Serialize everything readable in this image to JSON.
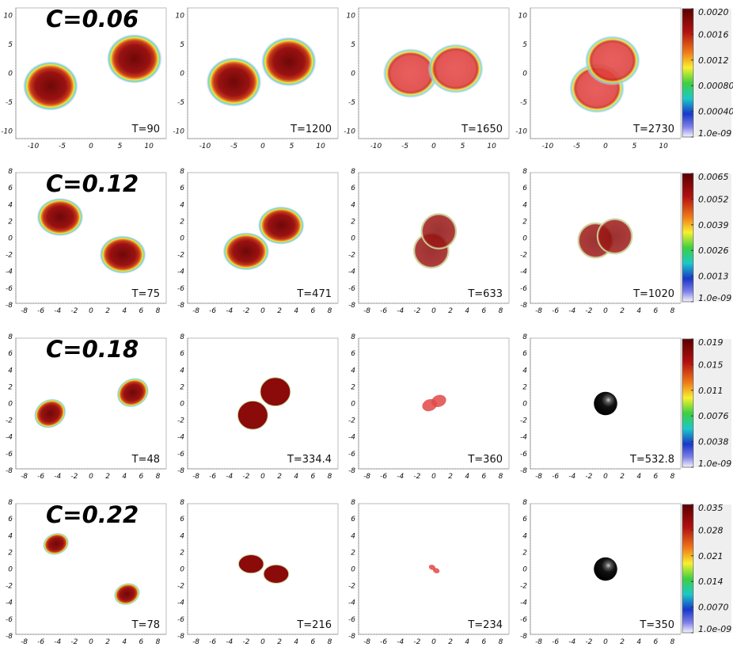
{
  "chart_data": {
    "type": "heatmap",
    "title": "",
    "rows": [
      {
        "label": "C=0.06",
        "axis_ticks": [
          -10,
          -5,
          0,
          5,
          10
        ],
        "axis_range": [
          -13,
          13
        ],
        "colorbar": {
          "ticks": [
            "0.0020",
            "0.0016",
            "0.0012",
            "0.00080",
            "0.00040",
            "1.0e-09"
          ]
        },
        "panels": [
          {
            "time_label": "T=90",
            "style": "soft",
            "blobs": [
              {
                "x": -7,
                "y": -2.2,
                "rx": 4.8,
                "ry": 4.3,
                "rot": 0
              },
              {
                "x": 7.5,
                "y": 2.5,
                "rx": 4.8,
                "ry": 4.3,
                "rot": 0
              }
            ]
          },
          {
            "time_label": "T=1200",
            "style": "soft",
            "blobs": [
              {
                "x": -5,
                "y": -1.5,
                "rx": 4.8,
                "ry": 4.3,
                "rot": 0
              },
              {
                "x": 4.5,
                "y": 2,
                "rx": 4.8,
                "ry": 4.3,
                "rot": 0
              }
            ]
          },
          {
            "time_label": "T=1650",
            "style": "flat",
            "blobs": [
              {
                "x": -4,
                "y": 0,
                "rx": 4.8,
                "ry": 4.3,
                "rot": 0
              },
              {
                "x": 3.8,
                "y": 0.8,
                "rx": 4.8,
                "ry": 4.3,
                "rot": 0
              }
            ]
          },
          {
            "time_label": "T=2730",
            "style": "flat",
            "blobs": [
              {
                "x": -1.5,
                "y": -2.6,
                "rx": 4.8,
                "ry": 4.3,
                "rot": 0
              },
              {
                "x": 1.2,
                "y": 2.2,
                "rx": 4.8,
                "ry": 4.3,
                "rot": 0
              }
            ]
          }
        ]
      },
      {
        "label": "C=0.12",
        "axis_ticks": [
          -8,
          -6,
          -4,
          -2,
          0,
          2,
          4,
          6,
          8
        ],
        "axis_range": [
          -9,
          9
        ],
        "colorbar": {
          "ticks": [
            "0.0065",
            "0.0052",
            "0.0039",
            "0.0026",
            "0.0013",
            "1.0e-09"
          ]
        },
        "panels": [
          {
            "time_label": "T=75",
            "style": "soft",
            "blobs": [
              {
                "x": -3.7,
                "y": 2.5,
                "rx": 2.8,
                "ry": 2.3,
                "rot": 0
              },
              {
                "x": 3.8,
                "y": -2,
                "rx": 2.8,
                "ry": 2.3,
                "rot": 0
              }
            ]
          },
          {
            "time_label": "T=471",
            "style": "soft",
            "blobs": [
              {
                "x": -2,
                "y": -1.6,
                "rx": 2.8,
                "ry": 2.3,
                "rot": 0
              },
              {
                "x": 2.2,
                "y": 1.5,
                "rx": 2.8,
                "ry": 2.3,
                "rot": 0
              }
            ]
          },
          {
            "time_label": "T=633",
            "style": "solid",
            "blobs": [
              {
                "x": -0.3,
                "y": -1.5,
                "rx": 2.1,
                "ry": 2.1,
                "rot": 0
              },
              {
                "x": 0.6,
                "y": 0.8,
                "rx": 2.1,
                "ry": 2.1,
                "rot": 0
              }
            ]
          },
          {
            "time_label": "T=1020",
            "style": "solid",
            "blobs": [
              {
                "x": -1.2,
                "y": -0.3,
                "rx": 2.1,
                "ry": 2.1,
                "rot": 0
              },
              {
                "x": 1.1,
                "y": 0.2,
                "rx": 2.1,
                "ry": 2.1,
                "rot": 0
              }
            ]
          }
        ]
      },
      {
        "label": "C=0.18",
        "axis_ticks": [
          -8,
          -6,
          -4,
          -2,
          0,
          2,
          4,
          6,
          8
        ],
        "axis_range": [
          -9,
          9
        ],
        "colorbar": {
          "ticks": [
            "0.019",
            "0.015",
            "0.011",
            "0.0076",
            "0.0038",
            "1.0e-09"
          ]
        },
        "panels": [
          {
            "time_label": "T=48",
            "style": "soft",
            "blobs": [
              {
                "x": -4.9,
                "y": -1.2,
                "rx": 2.0,
                "ry": 1.7,
                "rot": -30
              },
              {
                "x": 5,
                "y": 1.3,
                "rx": 2.0,
                "ry": 1.7,
                "rot": -30
              }
            ]
          },
          {
            "time_label": "T=334.4",
            "style": "dark",
            "blobs": [
              {
                "x": -1.2,
                "y": -1.4,
                "rx": 1.8,
                "ry": 1.7,
                "rot": 0
              },
              {
                "x": 1.5,
                "y": 1.4,
                "rx": 1.8,
                "ry": 1.7,
                "rot": 0
              }
            ]
          },
          {
            "time_label": "T=360",
            "style": "pale",
            "blobs": [
              {
                "x": -0.5,
                "y": -0.2,
                "rx": 0.9,
                "ry": 0.7,
                "rot": -20
              },
              {
                "x": 0.6,
                "y": 0.3,
                "rx": 0.9,
                "ry": 0.7,
                "rot": -20
              }
            ]
          },
          {
            "time_label": "T=532.8",
            "style": "black",
            "blobs": [
              {
                "x": 0,
                "y": 0,
                "rx": 1.4,
                "ry": 1.4,
                "rot": 0
              }
            ]
          }
        ]
      },
      {
        "label": "C=0.22",
        "axis_ticks": [
          -8,
          -6,
          -4,
          -2,
          0,
          2,
          4,
          6,
          8
        ],
        "axis_range": [
          -9,
          9
        ],
        "colorbar": {
          "ticks": [
            "0.035",
            "0.028",
            "0.021",
            "0.014",
            "0.0070",
            "1.0e-09"
          ]
        },
        "panels": [
          {
            "time_label": "T=78",
            "style": "soft",
            "blobs": [
              {
                "x": -4.2,
                "y": 3,
                "rx": 1.6,
                "ry": 1.3,
                "rot": -20
              },
              {
                "x": 4.3,
                "y": -3,
                "rx": 1.6,
                "ry": 1.3,
                "rot": -20
              }
            ]
          },
          {
            "time_label": "T=216",
            "style": "dark",
            "blobs": [
              {
                "x": -1.4,
                "y": 0.6,
                "rx": 1.5,
                "ry": 1.1,
                "rot": 0
              },
              {
                "x": 1.6,
                "y": -0.6,
                "rx": 1.5,
                "ry": 1.1,
                "rot": 0
              }
            ]
          },
          {
            "time_label": "T=234",
            "style": "pale",
            "blobs": [
              {
                "x": -0.2,
                "y": 0.2,
                "rx": 0.4,
                "ry": 0.3,
                "rot": 20
              },
              {
                "x": 0.3,
                "y": -0.2,
                "rx": 0.4,
                "ry": 0.3,
                "rot": 20
              }
            ]
          },
          {
            "time_label": "T=350",
            "style": "black",
            "blobs": [
              {
                "x": 0,
                "y": 0,
                "rx": 1.4,
                "ry": 1.4,
                "rot": 0
              }
            ]
          }
        ]
      }
    ]
  }
}
